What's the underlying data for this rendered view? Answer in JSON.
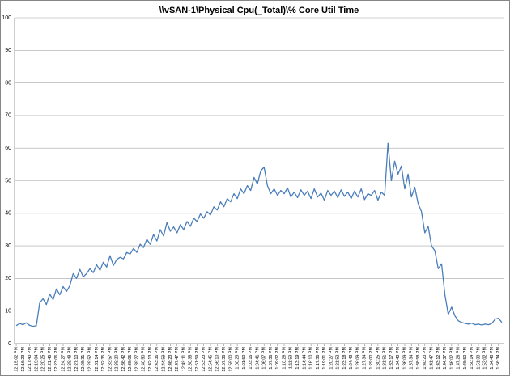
{
  "chart_data": {
    "type": "line",
    "title": "\\\\vSAN-1\\Physical Cpu(_Total)\\% Core Util Time",
    "categories": [
      "12:15:02 PM",
      null,
      "12:16:23 PM",
      null,
      "12:17:43 PM",
      null,
      "12:19:04 PM",
      null,
      "12:20:25 PM",
      null,
      "12:21:46 PM",
      null,
      "12:23:06 PM",
      null,
      "12:24:27 PM",
      null,
      "12:25:48 PM",
      null,
      "12:27:10 PM",
      null,
      "12:28:31 PM",
      null,
      "12:29:52 PM",
      null,
      "12:31:14 PM",
      null,
      "12:32:35 PM",
      null,
      "12:33:57 PM",
      null,
      "12:35:20 PM",
      null,
      "12:36:42 PM",
      null,
      "12:38:05 PM",
      null,
      "12:39:27 PM",
      null,
      "12:40:50 PM",
      null,
      "12:42:13 PM",
      null,
      "12:43:36 PM",
      null,
      "12:44:59 PM",
      null,
      "12:46:23 PM",
      null,
      "12:47:47 PM",
      null,
      "12:49:11 PM",
      null,
      "12:50:35 PM",
      null,
      "12:51:59 PM",
      null,
      "12:53:23 PM",
      null,
      "12:54:45 PM",
      null,
      "12:56:10 PM",
      null,
      "12:57:36 PM",
      null,
      "12:59:00 PM",
      null,
      "1:00:23 PM",
      null,
      "1:01:50 PM",
      null,
      "1:03:16 PM",
      null,
      "1:04:41 PM",
      null,
      "1:06:07 PM",
      null,
      "1:07:36 PM",
      null,
      "1:09:02 PM",
      null,
      "1:10:28 PM",
      null,
      "1:11:53 PM",
      null,
      "1:13:19 PM",
      null,
      "1:14:44 PM",
      null,
      "1:16:10 PM",
      null,
      "1:17:36 PM",
      null,
      "1:19:01 PM",
      null,
      "1:20:27 PM",
      null,
      "1:21:52 PM",
      null,
      "1:23:18 PM",
      null,
      "1:24:43 PM",
      null,
      "1:26:09 PM",
      null,
      "1:27:34 PM",
      null,
      "1:29:00 PM",
      null,
      "1:30:25 PM",
      null,
      "1:31:51 PM",
      null,
      "1:33:17 PM",
      null,
      "1:34:43 PM",
      null,
      "1:36:09 PM",
      null,
      "1:37:34 PM",
      null,
      "1:38:58 PM",
      null,
      "1:40:23 PM",
      null,
      "1:41:47 PM",
      null,
      "1:43:12 PM",
      null,
      "1:44:37 PM",
      null,
      "1:46:02 PM",
      null,
      "1:47:26 PM",
      null,
      "1:48:50 PM",
      null,
      "1:50:14 PM",
      null,
      "1:51:38 PM",
      null,
      "1:53:02 PM",
      null,
      "1:54:48 PM",
      null,
      "1:56:34 PM",
      null
    ],
    "values": [
      5.5,
      6.2,
      5.8,
      6.4,
      5.6,
      5.3,
      5.5,
      12.5,
      13.8,
      12.0,
      15.2,
      13.5,
      16.8,
      15.0,
      17.5,
      16.0,
      17.8,
      21.5,
      20.0,
      22.8,
      20.5,
      21.5,
      23.0,
      21.8,
      24.2,
      22.5,
      25.0,
      23.5,
      27.0,
      24.0,
      25.8,
      26.5,
      26.0,
      28.0,
      27.5,
      29.2,
      28.0,
      30.5,
      29.5,
      32.0,
      30.5,
      33.5,
      31.5,
      35.0,
      33.0,
      37.2,
      34.5,
      35.8,
      34.0,
      36.5,
      35.0,
      37.5,
      36.0,
      38.5,
      37.5,
      39.8,
      38.5,
      40.5,
      39.5,
      42.0,
      41.0,
      43.5,
      42.0,
      44.5,
      43.5,
      46.0,
      44.5,
      47.5,
      46.0,
      48.5,
      47.0,
      51.0,
      49.0,
      53.0,
      54.2,
      48.5,
      46.0,
      47.5,
      45.5,
      47.0,
      46.0,
      47.8,
      45.0,
      46.5,
      44.8,
      47.2,
      45.5,
      46.8,
      44.5,
      47.5,
      45.0,
      46.2,
      44.0,
      47.0,
      45.5,
      46.8,
      44.8,
      47.2,
      45.2,
      46.5,
      44.5,
      46.8,
      45.0,
      47.5,
      44.2,
      46.0,
      45.5,
      47.0,
      44.0,
      46.5,
      45.5,
      61.5,
      50.0,
      56.0,
      52.0,
      54.5,
      47.5,
      52.0,
      45.0,
      48.0,
      43.0,
      40.5,
      34.0,
      36.0,
      30.0,
      28.5,
      23.0,
      24.5,
      15.0,
      9.0,
      11.2,
      8.5,
      7.0,
      6.5,
      6.2,
      6.0,
      6.3,
      5.8,
      6.0,
      5.7,
      6.0,
      5.8,
      6.2,
      7.5,
      7.8,
      6.5
    ],
    "color": "#4a7ebb",
    "ylim": [
      0,
      100
    ],
    "yticks": [
      0,
      10,
      20,
      30,
      40,
      50,
      60,
      70,
      80,
      90,
      100
    ],
    "grid": true
  }
}
